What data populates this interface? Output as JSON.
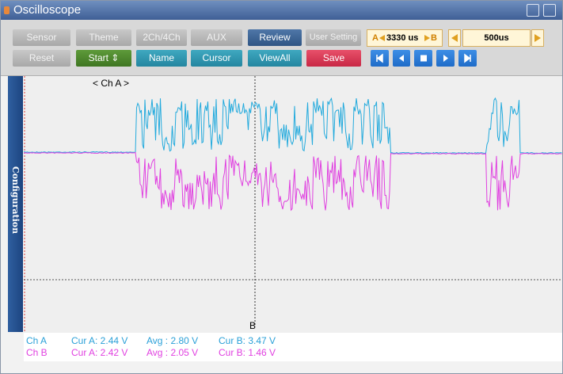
{
  "window": {
    "title": "Oscilloscope"
  },
  "toolbar": {
    "row1": [
      "Sensor",
      "Theme",
      "2Ch/4Ch",
      "AUX",
      "Review",
      "User Setting"
    ],
    "row2": [
      "Reset",
      "Start ⇕",
      "Name",
      "Cursor",
      "ViewAll",
      "Save"
    ]
  },
  "controls": {
    "a_label": "A",
    "a_value": "3330 us",
    "b_label": "B",
    "step_value": "500us"
  },
  "side_tab": "Configuration",
  "plot": {
    "channel_label": "< Ch A >",
    "cursor_label": "B"
  },
  "status": {
    "rows": [
      [
        "Ch A",
        "Cur A: 2.44 V",
        "Avg : 2.80 V",
        "Cur B: 3.47 V"
      ],
      [
        "Ch B",
        "Cur A: 2.42 V",
        "Avg : 2.05 V",
        "Cur B: 1.46 V"
      ]
    ]
  }
}
